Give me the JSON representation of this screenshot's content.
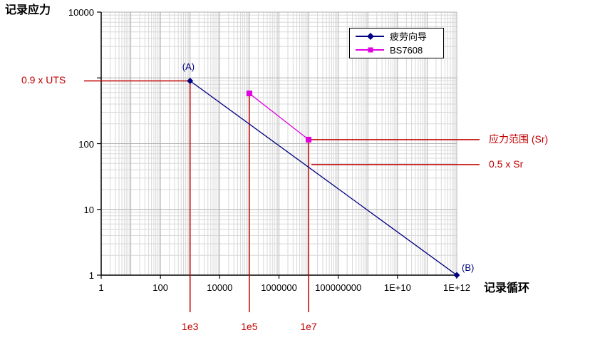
{
  "titles": {
    "y_axis": "记录应力",
    "x_axis": "记录循环"
  },
  "legend": {
    "items": [
      {
        "label": "疲劳向导",
        "color": "#000080",
        "marker": "diamond"
      },
      {
        "label": "BS7608",
        "color": "#e000e0",
        "marker": "square"
      }
    ]
  },
  "colors": {
    "background": "#ffffff",
    "axis": "#000000",
    "grid_major": "#b0b0b0",
    "grid_minor": "#d8d8d8",
    "annotation_red": "#c00000",
    "series_fatigue": "#000080",
    "series_bs7608": "#e000e0"
  },
  "chart_data": {
    "type": "line",
    "x_scale": "log",
    "y_scale": "log",
    "xlim": [
      1,
      1000000000000
    ],
    "ylim": [
      1,
      10000
    ],
    "grid": "major+minor, log-log",
    "legend_position": "top-right-inside",
    "title": "",
    "xlabel": "记录循环",
    "ylabel": "记录应力",
    "x_ticks": [
      {
        "value": 1,
        "label": "1"
      },
      {
        "value": 100,
        "label": "100"
      },
      {
        "value": 10000,
        "label": "10000"
      },
      {
        "value": 1000000,
        "label": "1000000"
      },
      {
        "value": 100000000,
        "label": "100000000"
      },
      {
        "value": 10000000000,
        "label": "1E+10"
      },
      {
        "value": 1000000000000,
        "label": "1E+12"
      }
    ],
    "y_ticks": [
      {
        "value": 10000,
        "label": "10000"
      },
      {
        "value": 100,
        "label": "100"
      },
      {
        "value": 10,
        "label": "10"
      },
      {
        "value": 1,
        "label": "1"
      }
    ],
    "series": [
      {
        "name": "疲劳向导",
        "color": "#000080",
        "marker": "diamond",
        "points": [
          {
            "x": 1000,
            "y": 900,
            "label": "(A)"
          },
          {
            "x": 1000000000000,
            "y": 1,
            "label": "(B)"
          }
        ]
      },
      {
        "name": "BS7608",
        "color": "#e000e0",
        "marker": "square",
        "points": [
          {
            "x": 100000,
            "y": 580
          },
          {
            "x": 10000000,
            "y": 115
          }
        ]
      }
    ],
    "annotations": {
      "uts": {
        "label": "0.9 x UTS",
        "y": 900,
        "points_to_x": 1000
      },
      "sr": {
        "label": "应力范围 (Sr)",
        "y": 115,
        "from_x": 10000000
      },
      "half_sr": {
        "label": "0.5 x Sr",
        "y": 48,
        "from_x": 10000000
      },
      "cycle_markers": [
        {
          "label": "1e3",
          "x": 1000,
          "y_top": 900
        },
        {
          "label": "1e5",
          "x": 100000,
          "y_top": 580
        },
        {
          "label": "1e7",
          "x": 10000000,
          "y_top": 115
        }
      ]
    }
  }
}
